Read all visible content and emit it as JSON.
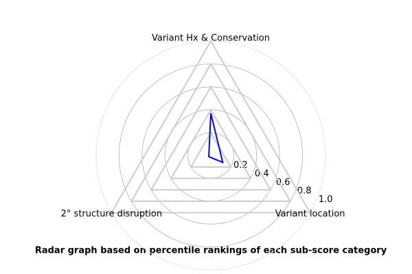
{
  "chart_data": {
    "type": "radar",
    "title": "Radar graph based on percentile rankings of each sub-score category",
    "categories": [
      "Variant Hx & Conservation",
      "Variant location",
      "2° structure disruption"
    ],
    "values": [
      0.37,
      0.12,
      0.02
    ],
    "color": "#0000ff",
    "ylim": [
      0,
      1
    ],
    "yticks": [
      0.2,
      0.4,
      0.6,
      0.8,
      {
        "value": 1,
        "label": "1.0"
      }
    ],
    "grid": true
  }
}
